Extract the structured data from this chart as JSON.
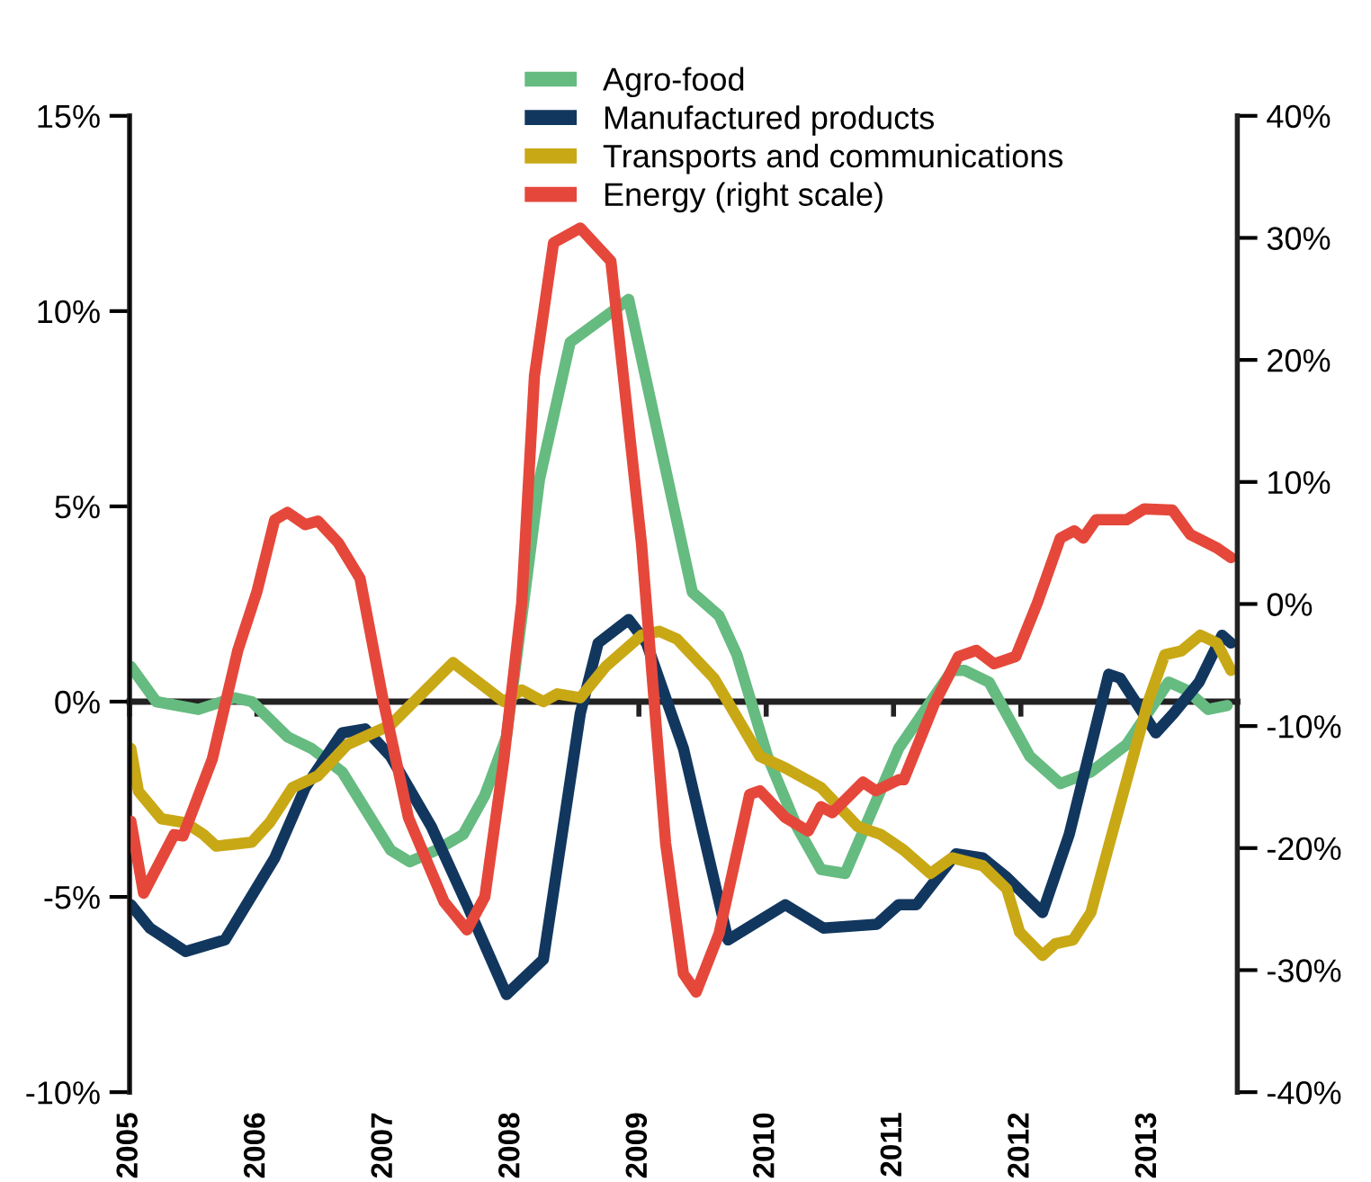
{
  "chart_data": {
    "type": "line",
    "xlim": [
      2005,
      2013.7
    ],
    "xticks": [
      2005,
      2006,
      2007,
      2008,
      2009,
      2010,
      2011,
      2012,
      2013
    ],
    "ylim": [
      -10,
      15
    ],
    "yticks": [
      {
        "value": -10,
        "label": "-10%"
      },
      {
        "value": -5,
        "label": "-5%"
      },
      {
        "value": 0,
        "label": "0%"
      },
      {
        "value": 5,
        "label": "5%"
      },
      {
        "value": 10,
        "label": "10%"
      },
      {
        "value": 15,
        "label": "15%"
      }
    ],
    "y2lim": [
      -40,
      40
    ],
    "y2ticks": [
      {
        "value": -40,
        "label": "-40%"
      },
      {
        "value": -30,
        "label": "-30%"
      },
      {
        "value": -20,
        "label": "-20%"
      },
      {
        "value": -10,
        "label": "-10%"
      },
      {
        "value": 0,
        "label": "0%"
      },
      {
        "value": 10,
        "label": "10%"
      },
      {
        "value": 20,
        "label": "20%"
      },
      {
        "value": 30,
        "label": "30%"
      },
      {
        "value": 40,
        "label": "40%"
      }
    ],
    "ref_lines": [
      {
        "axis": "y",
        "value": 0,
        "color": "#222222"
      }
    ],
    "grid": false,
    "legend": "top",
    "marker": "none",
    "line_style": "solid",
    "series": [
      {
        "name": "Agro-food",
        "color": "#66bb80",
        "x": [
          2005.01,
          2005.21,
          2005.54,
          2005.82,
          2005.96,
          2006.24,
          2006.43,
          2006.67,
          2007.05,
          2007.2,
          2007.41,
          2007.62,
          2007.79,
          2007.96,
          2008.22,
          2008.46,
          2008.92,
          2009.42,
          2009.63,
          2009.77,
          2010.01,
          2010.24,
          2010.43,
          2010.62,
          2011.04,
          2011.46,
          2011.56,
          2011.75,
          2012.07,
          2012.31,
          2012.55,
          2012.83,
          2013.16,
          2013.3,
          2013.47,
          2013.62
        ],
        "values": [
          0.9,
          0,
          -0.2,
          0.1,
          0,
          -0.9,
          -1.2,
          -1.8,
          -3.8,
          -4.1,
          -3.8,
          -3.4,
          -2.4,
          -0.9,
          5.7,
          9.2,
          10.3,
          2.8,
          2.2,
          1.2,
          -1.4,
          -3.2,
          -4.3,
          -4.4,
          -1.2,
          0.8,
          0.8,
          0.5,
          -1.4,
          -2.1,
          -1.8,
          -1.1,
          0.5,
          0.3,
          -0.2,
          -0.1
        ]
      },
      {
        "name": "Manufactured products",
        "color": "#12375f",
        "x": [
          2005.01,
          2005.16,
          2005.44,
          2005.75,
          2006.14,
          2006.38,
          2006.67,
          2006.85,
          2007.05,
          2007.37,
          2007.65,
          2007.96,
          2008.25,
          2008.54,
          2008.68,
          2008.92,
          2009.06,
          2009.35,
          2009.7,
          2010.15,
          2010.45,
          2010.87,
          2011.04,
          2011.18,
          2011.49,
          2011.7,
          2011.89,
          2012.17,
          2012.38,
          2012.69,
          2012.78,
          2013.06,
          2013.2,
          2013.4,
          2013.58,
          2013.65
        ],
        "values": [
          -5.2,
          -5.8,
          -6.4,
          -6.1,
          -4.0,
          -2.2,
          -0.8,
          -0.7,
          -1.4,
          -3.2,
          -5.2,
          -7.5,
          -6.6,
          -0.3,
          1.5,
          2.1,
          1.5,
          -1.2,
          -6.1,
          -5.2,
          -5.8,
          -5.7,
          -5.2,
          -5.2,
          -3.9,
          -4.0,
          -4.5,
          -5.4,
          -3.4,
          0.7,
          0.6,
          -0.8,
          -0.3,
          0.5,
          1.7,
          1.5
        ]
      },
      {
        "name": "Transports and communications",
        "color": "#c9a816",
        "x": [
          2005.01,
          2005.07,
          2005.25,
          2005.44,
          2005.58,
          2005.68,
          2005.96,
          2006.1,
          2006.28,
          2006.48,
          2006.71,
          2007.05,
          2007.54,
          2007.7,
          2007.94,
          2008.08,
          2008.25,
          2008.36,
          2008.54,
          2008.74,
          2009.02,
          2009.16,
          2009.3,
          2009.59,
          2009.95,
          2010.15,
          2010.43,
          2010.72,
          2010.9,
          2011.08,
          2011.29,
          2011.46,
          2011.7,
          2011.89,
          2011.99,
          2012.17,
          2012.27,
          2012.41,
          2012.55,
          2012.69,
          2013.0,
          2013.13,
          2013.26,
          2013.41,
          2013.54,
          2013.65
        ],
        "values": [
          -1.2,
          -2.3,
          -3.0,
          -3.1,
          -3.4,
          -3.7,
          -3.6,
          -3.1,
          -2.2,
          -1.9,
          -1.1,
          -0.6,
          1.0,
          0.6,
          0,
          0.3,
          0,
          0.2,
          0.1,
          0.9,
          1.7,
          1.8,
          1.6,
          0.6,
          -1.4,
          -1.7,
          -2.2,
          -3.2,
          -3.4,
          -3.8,
          -4.4,
          -4.0,
          -4.2,
          -4.8,
          -5.9,
          -6.5,
          -6.2,
          -6.1,
          -5.4,
          -3.7,
          0,
          1.2,
          1.3,
          1.7,
          1.5,
          0.8
        ]
      },
      {
        "name": "Energy (right scale)",
        "color": "#e5483b",
        "axis": "y2",
        "x": [
          2005.01,
          2005.11,
          2005.35,
          2005.42,
          2005.65,
          2005.85,
          2006.0,
          2006.14,
          2006.24,
          2006.38,
          2006.48,
          2006.64,
          2006.81,
          2006.99,
          2007.19,
          2007.47,
          2007.65,
          2007.79,
          2007.94,
          2008.08,
          2008.18,
          2008.33,
          2008.54,
          2008.78,
          2009.02,
          2009.21,
          2009.35,
          2009.45,
          2009.63,
          2009.87,
          2009.95,
          2010.15,
          2010.33,
          2010.43,
          2010.52,
          2010.76,
          2010.86,
          2011.04,
          2011.08,
          2011.32,
          2011.51,
          2011.65,
          2011.79,
          2011.96,
          2012.13,
          2012.31,
          2012.42,
          2012.49,
          2012.59,
          2012.83,
          2012.97,
          2013.19,
          2013.33,
          2013.54,
          2013.65
        ],
        "values": [
          -17.8,
          -23.7,
          -18.9,
          -19.0,
          -12.7,
          -3.8,
          1.0,
          6.9,
          7.5,
          6.5,
          6.8,
          5.0,
          2.1,
          -7.8,
          -17.5,
          -24.4,
          -26.7,
          -24.0,
          -12.7,
          0.1,
          18.7,
          29.6,
          30.8,
          28.1,
          5.0,
          -19.6,
          -30.3,
          -31.8,
          -27.0,
          -15.6,
          -15.3,
          -17.5,
          -18.6,
          -16.6,
          -17.1,
          -14.6,
          -15.3,
          -14.4,
          -14.4,
          -8.2,
          -4.3,
          -3.8,
          -4.9,
          -4.3,
          0.1,
          5.4,
          6.0,
          5.4,
          6.9,
          6.9,
          7.8,
          7.7,
          5.7,
          4.6,
          3.8
        ]
      }
    ]
  }
}
